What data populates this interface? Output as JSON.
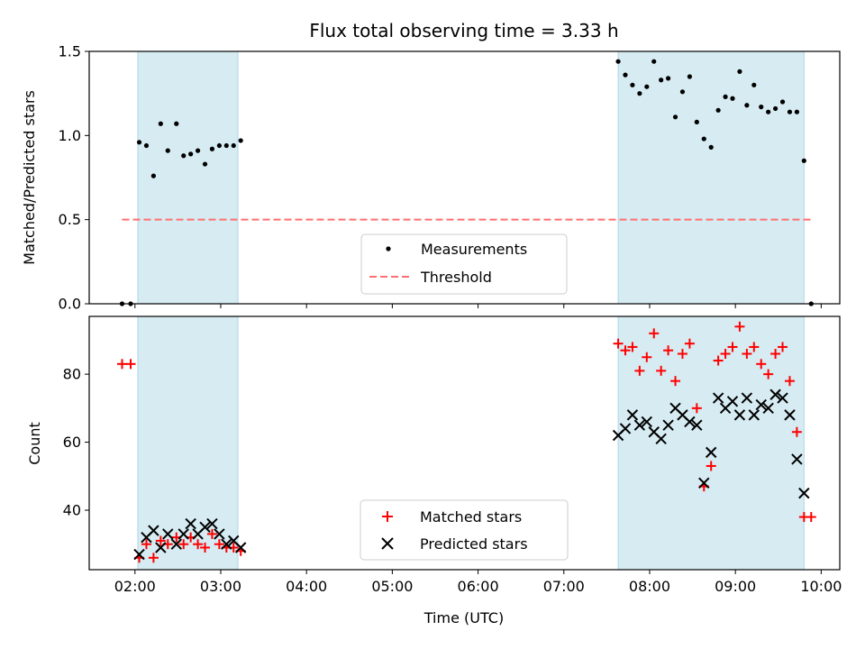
{
  "chart_data": [
    {
      "type": "scatter",
      "title": "Flux total observing time = 3.33 h",
      "xlabel": "",
      "ylabel": "Matched/Predicted stars",
      "ylim": [
        0,
        1.5
      ],
      "yticks": [
        "0.0",
        "0.5",
        "1.0",
        "1.5"
      ],
      "xlim": [
        "01:28",
        "10:13"
      ],
      "x_tick_labels_shown": false,
      "legend": "lower-center",
      "grid": false,
      "shaded_intervals": [
        [
          "02:02",
          "03:12"
        ],
        [
          "07:38",
          "09:48"
        ]
      ],
      "shade_color": "#add8e6",
      "series": [
        {
          "name": "Measurements",
          "marker": "dot",
          "color": "#000000",
          "points": [
            [
              "01:51",
              0.0
            ],
            [
              "01:57",
              0.0
            ],
            [
              "02:03",
              0.96
            ],
            [
              "02:08",
              0.94
            ],
            [
              "02:13",
              0.76
            ],
            [
              "02:18",
              1.07
            ],
            [
              "02:23",
              0.91
            ],
            [
              "02:29",
              1.07
            ],
            [
              "02:34",
              0.88
            ],
            [
              "02:39",
              0.89
            ],
            [
              "02:44",
              0.91
            ],
            [
              "02:49",
              0.83
            ],
            [
              "02:54",
              0.92
            ],
            [
              "02:59",
              0.94
            ],
            [
              "03:04",
              0.94
            ],
            [
              "03:09",
              0.94
            ],
            [
              "03:14",
              0.97
            ],
            [
              "07:38",
              1.44
            ],
            [
              "07:43",
              1.36
            ],
            [
              "07:48",
              1.3
            ],
            [
              "07:53",
              1.25
            ],
            [
              "07:58",
              1.29
            ],
            [
              "08:03",
              1.44
            ],
            [
              "08:08",
              1.33
            ],
            [
              "08:13",
              1.34
            ],
            [
              "08:18",
              1.11
            ],
            [
              "08:23",
              1.26
            ],
            [
              "08:28",
              1.35
            ],
            [
              "08:33",
              1.08
            ],
            [
              "08:38",
              0.98
            ],
            [
              "08:43",
              0.93
            ],
            [
              "08:48",
              1.15
            ],
            [
              "08:53",
              1.23
            ],
            [
              "08:58",
              1.22
            ],
            [
              "09:03",
              1.38
            ],
            [
              "09:08",
              1.18
            ],
            [
              "09:13",
              1.3
            ],
            [
              "09:18",
              1.17
            ],
            [
              "09:23",
              1.14
            ],
            [
              "09:28",
              1.16
            ],
            [
              "09:33",
              1.2
            ],
            [
              "09:38",
              1.14
            ],
            [
              "09:43",
              1.14
            ],
            [
              "09:48",
              0.85
            ],
            [
              "09:53",
              0.0
            ]
          ]
        },
        {
          "name": "Threshold",
          "marker": "dashed-line",
          "color": "#ff6f6f",
          "points": [
            [
              "01:51",
              0.5
            ],
            [
              "09:53",
              0.5
            ]
          ]
        }
      ]
    },
    {
      "type": "scatter",
      "title": "",
      "xlabel": "Time (UTC)",
      "ylabel": "Count",
      "ylim": [
        22.5,
        97
      ],
      "yticks": [
        "40",
        "60",
        "80"
      ],
      "xlim": [
        "01:28",
        "10:13"
      ],
      "xticks": [
        "02:00",
        "03:00",
        "04:00",
        "05:00",
        "06:00",
        "07:00",
        "08:00",
        "09:00",
        "10:00"
      ],
      "legend": "lower-center",
      "grid": false,
      "shaded_intervals": [
        [
          "02:02",
          "03:12"
        ],
        [
          "07:38",
          "09:48"
        ]
      ],
      "shade_color": "#add8e6",
      "series": [
        {
          "name": "Matched stars",
          "marker": "plus",
          "color": "#ff0000",
          "points": [
            [
              "01:51",
              83
            ],
            [
              "01:57",
              83
            ],
            [
              "02:03",
              26
            ],
            [
              "02:08",
              30
            ],
            [
              "02:13",
              26
            ],
            [
              "02:18",
              31
            ],
            [
              "02:23",
              30
            ],
            [
              "02:29",
              32
            ],
            [
              "02:34",
              30
            ],
            [
              "02:39",
              32
            ],
            [
              "02:44",
              30
            ],
            [
              "02:49",
              29
            ],
            [
              "02:54",
              33
            ],
            [
              "02:59",
              30
            ],
            [
              "03:04",
              29
            ],
            [
              "03:09",
              29
            ],
            [
              "03:14",
              28
            ],
            [
              "07:38",
              89
            ],
            [
              "07:43",
              87
            ],
            [
              "07:48",
              88
            ],
            [
              "07:53",
              81
            ],
            [
              "07:58",
              85
            ],
            [
              "08:03",
              92
            ],
            [
              "08:08",
              81
            ],
            [
              "08:13",
              87
            ],
            [
              "08:18",
              78
            ],
            [
              "08:23",
              86
            ],
            [
              "08:28",
              89
            ],
            [
              "08:33",
              70
            ],
            [
              "08:38",
              47
            ],
            [
              "08:43",
              53
            ],
            [
              "08:48",
              84
            ],
            [
              "08:53",
              86
            ],
            [
              "08:58",
              88
            ],
            [
              "09:03",
              94
            ],
            [
              "09:08",
              86
            ],
            [
              "09:13",
              88
            ],
            [
              "09:18",
              83
            ],
            [
              "09:23",
              80
            ],
            [
              "09:28",
              86
            ],
            [
              "09:33",
              88
            ],
            [
              "09:38",
              78
            ],
            [
              "09:43",
              63
            ],
            [
              "09:48",
              38
            ],
            [
              "09:53",
              38
            ]
          ]
        },
        {
          "name": "Predicted stars",
          "marker": "x",
          "color": "#000000",
          "points": [
            [
              "02:03",
              27
            ],
            [
              "02:08",
              32
            ],
            [
              "02:13",
              34
            ],
            [
              "02:18",
              29
            ],
            [
              "02:23",
              33
            ],
            [
              "02:29",
              30
            ],
            [
              "02:34",
              33
            ],
            [
              "02:39",
              36
            ],
            [
              "02:44",
              33
            ],
            [
              "02:49",
              35
            ],
            [
              "02:54",
              36
            ],
            [
              "02:59",
              33
            ],
            [
              "03:04",
              30
            ],
            [
              "03:09",
              31
            ],
            [
              "03:14",
              29
            ],
            [
              "07:38",
              62
            ],
            [
              "07:43",
              64
            ],
            [
              "07:48",
              68
            ],
            [
              "07:53",
              65
            ],
            [
              "07:58",
              66
            ],
            [
              "08:03",
              63
            ],
            [
              "08:08",
              61
            ],
            [
              "08:13",
              65
            ],
            [
              "08:18",
              70
            ],
            [
              "08:23",
              68
            ],
            [
              "08:28",
              66
            ],
            [
              "08:33",
              65
            ],
            [
              "08:38",
              48
            ],
            [
              "08:43",
              57
            ],
            [
              "08:48",
              73
            ],
            [
              "08:53",
              70
            ],
            [
              "08:58",
              72
            ],
            [
              "09:03",
              68
            ],
            [
              "09:08",
              73
            ],
            [
              "09:13",
              68
            ],
            [
              "09:18",
              71
            ],
            [
              "09:23",
              70
            ],
            [
              "09:28",
              74
            ],
            [
              "09:33",
              73
            ],
            [
              "09:38",
              68
            ],
            [
              "09:43",
              55
            ],
            [
              "09:48",
              45
            ]
          ]
        }
      ]
    }
  ]
}
